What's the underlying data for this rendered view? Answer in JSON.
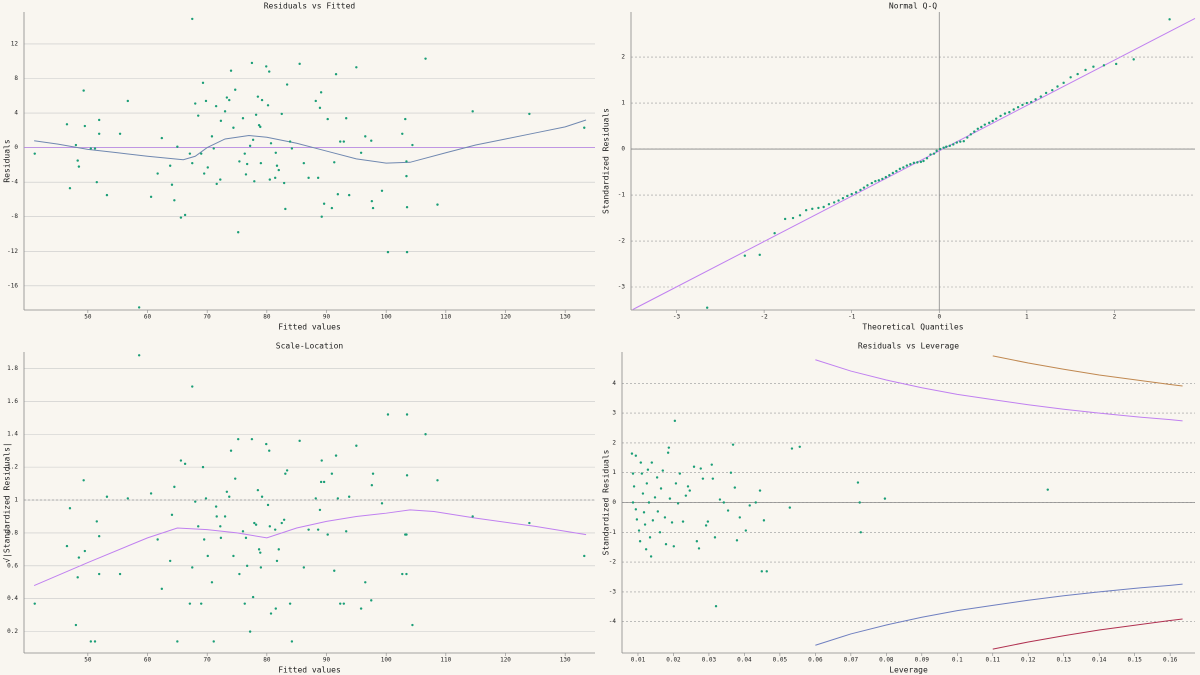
{
  "chart_data": [
    {
      "type": "scatter",
      "title": "Residuals vs Fitted",
      "xlabel": "Fitted values",
      "ylabel": "Residuals",
      "color": "#1b9e77",
      "grid": "solid",
      "xlim": [
        39.3,
        135
      ],
      "ylim": [
        -18.8,
        15.7
      ],
      "xticks": [
        50,
        60,
        70,
        80,
        90,
        100,
        110,
        120,
        130
      ],
      "yticks": [
        -16,
        -12,
        -8,
        -4,
        0,
        4,
        8,
        12
      ],
      "x": [
        41.1,
        46.5,
        47.0,
        48.3,
        48.5,
        48.0,
        49.3,
        49.5,
        50.5,
        51.2,
        51.5,
        51.9,
        51.9,
        53.2,
        55.4,
        56.7,
        58.6,
        60.6,
        61.7,
        62.4,
        63.8,
        64.1,
        64.5,
        65.0,
        65.6,
        66.3,
        67.1,
        67.5,
        67.5,
        68.0,
        68.5,
        69.0,
        69.3,
        69.5,
        69.8,
        70.1,
        70.8,
        71.1,
        71.5,
        71.6,
        72.2,
        72.3,
        73.0,
        73.3,
        73.7,
        74.0,
        74.4,
        74.7,
        75.2,
        75.4,
        76.0,
        76.3,
        76.5,
        76.7,
        77.2,
        77.5,
        77.7,
        77.9,
        78.2,
        78.5,
        78.7,
        78.9,
        79.0,
        79.2,
        79.9,
        80.2,
        80.4,
        80.5,
        80.7,
        81.4,
        81.5,
        81.7,
        82.0,
        82.5,
        82.9,
        83.1,
        83.4,
        83.9,
        84.2,
        85.5,
        86.2,
        87.0,
        88.2,
        88.6,
        88.9,
        89.1,
        89.2,
        89.6,
        90.2,
        90.9,
        91.3,
        91.6,
        91.9,
        92.3,
        92.9,
        93.3,
        93.8,
        95.0,
        95.8,
        96.5,
        97.5,
        97.6,
        97.8,
        99.3,
        100.3,
        102.7,
        103.2,
        103.4,
        103.4,
        103.5,
        103.5,
        104.4,
        106.6,
        108.6,
        114.5,
        124.0,
        133.2
      ],
      "values": [
        -0.7,
        2.7,
        -4.7,
        -1.5,
        -2.2,
        0.3,
        6.6,
        2.5,
        -0.1,
        -0.1,
        -4.0,
        3.2,
        1.6,
        -5.5,
        1.6,
        5.4,
        -18.5,
        -5.7,
        -3.0,
        1.1,
        -2.1,
        -4.3,
        -6.1,
        0.1,
        -8.1,
        -7.8,
        -0.7,
        14.9,
        -1.8,
        5.1,
        3.7,
        -0.7,
        7.5,
        -3.0,
        5.4,
        -2.3,
        1.3,
        -0.1,
        4.8,
        -4.2,
        -3.7,
        3.1,
        4.2,
        5.8,
        5.5,
        8.9,
        2.3,
        6.7,
        -9.8,
        -1.6,
        3.4,
        -0.7,
        -3.1,
        -1.9,
        0.2,
        9.8,
        0.9,
        -3.9,
        3.8,
        5.9,
        2.6,
        2.4,
        -1.8,
        5.5,
        9.4,
        4.9,
        8.8,
        -3.7,
        0.5,
        -3.5,
        -0.6,
        -2.1,
        -2.6,
        3.9,
        -4.1,
        -7.1,
        7.3,
        0.7,
        -0.1,
        9.7,
        -1.8,
        -3.5,
        5.4,
        -3.5,
        4.6,
        6.4,
        -8.0,
        -6.5,
        3.3,
        -7.0,
        -1.7,
        8.5,
        -5.4,
        0.7,
        0.7,
        3.4,
        -5.5,
        9.3,
        -0.6,
        1.3,
        0.8,
        -6.2,
        -7.0,
        -5.0,
        -12.1,
        1.6,
        3.3,
        -1.6,
        -3.3,
        -6.9,
        -12.1,
        0.3,
        10.3,
        -6.6,
        4.2,
        3.9,
        2.3
      ],
      "ref_lines": [
        {
          "axis": "y",
          "value": 0,
          "color": "#b47ee5",
          "dash": false
        }
      ],
      "lines": [
        {
          "color": "#7088b0",
          "x": [
            41,
            45,
            50,
            55,
            60,
            63,
            66,
            68,
            70,
            73,
            77,
            80,
            85,
            90,
            95,
            100,
            104,
            110,
            115,
            120,
            125,
            130,
            133.5
          ],
          "values": [
            0.8,
            0.4,
            -0.2,
            -0.6,
            -1.0,
            -1.2,
            -1.4,
            -1.0,
            0,
            1.0,
            1.4,
            1.2,
            0.5,
            -0.4,
            -1.3,
            -1.8,
            -1.7,
            -0.6,
            0.3,
            1.0,
            1.7,
            2.4,
            3.2
          ]
        }
      ]
    },
    {
      "type": "scatter",
      "title": "Normal Q-Q",
      "xlabel": "Theoretical Quantiles",
      "ylabel": "Standardized Residuals",
      "color": "#1b9e77",
      "grid": "dashed",
      "xlim": [
        -3.52,
        2.92
      ],
      "ylim": [
        -3.5,
        2.98
      ],
      "xticks": [
        -3,
        -2,
        -1,
        0,
        1,
        2
      ],
      "yticks": [
        -3,
        -2,
        -1,
        0,
        1,
        2
      ],
      "x": [
        -2.65,
        -2.22,
        -2.05,
        -1.88,
        -1.76,
        -1.67,
        -1.59,
        -1.52,
        -1.45,
        -1.38,
        -1.32,
        -1.26,
        -1.2,
        -1.15,
        -1.1,
        -1.05,
        -1.0,
        -0.95,
        -0.9,
        -0.86,
        -0.82,
        -0.77,
        -0.73,
        -0.69,
        -0.65,
        -0.61,
        -0.57,
        -0.53,
        -0.49,
        -0.45,
        -0.41,
        -0.37,
        -0.33,
        -0.29,
        -0.25,
        -0.21,
        -0.18,
        -0.14,
        -0.1,
        -0.06,
        -0.03,
        0.01,
        0.05,
        0.08,
        0.12,
        0.16,
        0.2,
        0.24,
        0.28,
        0.32,
        0.36,
        0.4,
        0.44,
        0.48,
        0.52,
        0.57,
        0.61,
        0.65,
        0.7,
        0.75,
        0.8,
        0.85,
        0.9,
        0.95,
        1.0,
        1.05,
        1.1,
        1.16,
        1.22,
        1.29,
        1.35,
        1.42,
        1.5,
        1.58,
        1.67,
        1.76,
        1.88,
        2.02,
        2.22,
        2.63
      ],
      "values": [
        -3.45,
        -2.32,
        -2.3,
        -1.83,
        -1.52,
        -1.5,
        -1.44,
        -1.33,
        -1.3,
        -1.28,
        -1.26,
        -1.2,
        -1.16,
        -1.12,
        -1.07,
        -1.02,
        -0.98,
        -0.94,
        -0.89,
        -0.84,
        -0.79,
        -0.74,
        -0.7,
        -0.68,
        -0.65,
        -0.61,
        -0.57,
        -0.52,
        -0.48,
        -0.43,
        -0.4,
        -0.36,
        -0.33,
        -0.3,
        -0.29,
        -0.28,
        -0.26,
        -0.2,
        -0.12,
        -0.1,
        -0.04,
        0.0,
        0.03,
        0.05,
        0.07,
        0.1,
        0.14,
        0.16,
        0.17,
        0.25,
        0.32,
        0.38,
        0.44,
        0.48,
        0.53,
        0.57,
        0.61,
        0.66,
        0.72,
        0.77,
        0.8,
        0.86,
        0.91,
        0.96,
        1.0,
        1.02,
        1.08,
        1.14,
        1.22,
        1.28,
        1.36,
        1.44,
        1.56,
        1.63,
        1.72,
        1.79,
        1.82,
        1.85,
        1.95,
        2.82
      ],
      "ref_lines": [
        {
          "axis": "y",
          "value": 0,
          "color": "#888888",
          "dash": false
        },
        {
          "axis": "x",
          "value": 0,
          "color": "#888888",
          "dash": false
        }
      ],
      "lines": [
        {
          "color": "#c080f0",
          "x": [
            -3.5,
            2.92
          ],
          "values": [
            -3.49,
            2.84
          ]
        }
      ]
    },
    {
      "type": "scatter",
      "title": "Scale-Location",
      "xlabel": "Fitted values",
      "ylabel": "√|Standardized Residuals|",
      "color": "#1b9e77",
      "grid": "solid",
      "xlim": [
        39.3,
        135
      ],
      "ylim": [
        0.07,
        1.9
      ],
      "xticks": [
        50,
        60,
        70,
        80,
        90,
        100,
        110,
        120,
        130
      ],
      "yticks": [
        0.2,
        0.4,
        0.6,
        0.8,
        1,
        1.2,
        1.4,
        1.6,
        1.8
      ],
      "x": [
        41.1,
        46.5,
        47.0,
        48.3,
        48.5,
        48.0,
        49.3,
        49.5,
        50.5,
        51.2,
        51.5,
        51.9,
        51.9,
        53.2,
        55.4,
        56.7,
        58.6,
        60.6,
        61.7,
        62.4,
        63.8,
        64.1,
        64.5,
        65.0,
        65.6,
        66.3,
        67.1,
        67.5,
        67.5,
        68.0,
        68.5,
        69.0,
        69.3,
        69.5,
        69.8,
        70.1,
        70.8,
        71.1,
        71.5,
        71.6,
        72.2,
        72.3,
        73.0,
        73.3,
        73.7,
        74.0,
        74.4,
        74.7,
        75.2,
        75.4,
        76.0,
        76.3,
        76.5,
        76.7,
        77.2,
        77.5,
        77.7,
        77.9,
        78.2,
        78.5,
        78.7,
        78.9,
        79.0,
        79.2,
        79.9,
        80.2,
        80.4,
        80.5,
        80.7,
        81.4,
        81.5,
        81.7,
        82.0,
        82.5,
        82.9,
        83.1,
        83.4,
        83.9,
        84.2,
        85.5,
        86.2,
        87.0,
        88.2,
        88.6,
        88.9,
        89.1,
        89.2,
        89.6,
        90.2,
        90.9,
        91.3,
        91.6,
        91.9,
        92.3,
        92.9,
        93.3,
        93.8,
        95.0,
        95.8,
        96.5,
        97.5,
        97.6,
        97.8,
        99.3,
        100.3,
        102.7,
        103.2,
        103.4,
        103.4,
        103.5,
        103.5,
        104.4,
        106.6,
        108.6,
        114.5,
        124.0,
        133.2
      ],
      "values": [
        0.37,
        0.72,
        0.95,
        0.53,
        0.65,
        0.24,
        1.12,
        0.69,
        0.14,
        0.14,
        0.87,
        0.78,
        0.55,
        1.02,
        0.55,
        1.01,
        1.88,
        1.04,
        0.76,
        0.46,
        0.63,
        0.91,
        1.08,
        0.14,
        1.24,
        1.22,
        0.37,
        1.69,
        0.59,
        0.99,
        0.84,
        0.37,
        1.2,
        0.76,
        1.01,
        0.66,
        0.5,
        0.14,
        0.96,
        0.9,
        0.84,
        0.77,
        0.9,
        1.05,
        1.02,
        1.3,
        0.66,
        1.13,
        1.37,
        0.55,
        0.81,
        0.37,
        0.77,
        0.6,
        0.2,
        1.37,
        0.41,
        0.86,
        0.85,
        1.06,
        0.7,
        0.68,
        0.59,
        1.02,
        1.34,
        0.97,
        1.3,
        0.84,
        0.31,
        0.82,
        0.34,
        0.63,
        0.7,
        0.86,
        0.88,
        1.16,
        1.18,
        0.37,
        0.14,
        1.36,
        0.59,
        0.82,
        1.01,
        0.82,
        0.94,
        1.11,
        1.24,
        1.11,
        0.79,
        1.16,
        0.57,
        1.27,
        1.01,
        0.37,
        0.37,
        0.81,
        1.02,
        1.33,
        0.34,
        0.5,
        0.39,
        1.09,
        1.16,
        0.98,
        1.52,
        0.55,
        0.79,
        0.55,
        0.79,
        1.15,
        1.52,
        0.24,
        1.4,
        1.12,
        0.9,
        0.86,
        0.66
      ],
      "ref_lines": [
        {
          "axis": "y",
          "value": 1,
          "color": "#999999",
          "dash": true
        }
      ],
      "lines": [
        {
          "color": "#c080f0",
          "x": [
            41,
            50,
            60,
            65,
            70,
            75,
            80,
            85,
            90,
            95,
            100,
            104,
            108,
            115,
            125,
            133.5
          ],
          "values": [
            0.48,
            0.62,
            0.77,
            0.83,
            0.82,
            0.8,
            0.77,
            0.83,
            0.87,
            0.9,
            0.92,
            0.94,
            0.93,
            0.89,
            0.84,
            0.79
          ]
        }
      ]
    },
    {
      "type": "scatter",
      "title": "Residuals vs Leverage",
      "xlabel": "Leverage",
      "ylabel": "Standardized Residuals",
      "color": "#1b9e77",
      "grid": "dashed",
      "xlim": [
        0.0055,
        0.167
      ],
      "ylim": [
        -5.05,
        5.05
      ],
      "xticks": [
        0.01,
        0.02,
        0.03,
        0.04,
        0.05,
        0.06,
        0.07,
        0.08,
        0.09,
        0.1,
        0.11,
        0.12,
        0.13,
        0.14,
        0.15,
        0.16
      ],
      "yticks": [
        -4,
        -3,
        -2,
        -1,
        0,
        1,
        2,
        3,
        4
      ],
      "x": [
        0.0083,
        0.0094,
        0.0086,
        0.0089,
        0.0086,
        0.0094,
        0.0097,
        0.0103,
        0.0106,
        0.0108,
        0.0111,
        0.0114,
        0.0117,
        0.012,
        0.0123,
        0.0125,
        0.0128,
        0.0131,
        0.0134,
        0.0137,
        0.0139,
        0.0142,
        0.0148,
        0.0154,
        0.0156,
        0.0162,
        0.0165,
        0.017,
        0.0176,
        0.0179,
        0.0185,
        0.0187,
        0.019,
        0.0196,
        0.0201,
        0.0204,
        0.0207,
        0.0213,
        0.0218,
        0.0227,
        0.0235,
        0.0241,
        0.0246,
        0.0258,
        0.0266,
        0.0272,
        0.0277,
        0.0283,
        0.0292,
        0.0297,
        0.0308,
        0.0311,
        0.0317,
        0.032,
        0.0331,
        0.0342,
        0.0354,
        0.0362,
        0.0368,
        0.0373,
        0.0379,
        0.0387,
        0.0404,
        0.0415,
        0.0432,
        0.0444,
        0.0449,
        0.0455,
        0.0463,
        0.0528,
        0.0534,
        0.0556,
        0.072,
        0.0725,
        0.0728,
        0.0796,
        0.1255
      ],
      "values": [
        1.64,
        1.57,
        0.97,
        0.54,
        0,
        -0.23,
        -0.57,
        -0.94,
        -1.3,
        1.34,
        0.97,
        0.3,
        -0.33,
        -0.74,
        -1.57,
        0.64,
        1.1,
        0,
        -1.17,
        -1.81,
        1.34,
        -0.6,
        0.17,
        0.84,
        -0.3,
        -1.0,
        0.47,
        1.07,
        -0.5,
        -1.4,
        1.67,
        1.84,
        0.13,
        -0.67,
        -1.47,
        2.74,
        0.64,
        -0.03,
        0.97,
        -0.64,
        0.23,
        0.54,
        0.4,
        1.2,
        -1.3,
        -1.54,
        1.14,
        0.8,
        -0.77,
        -0.64,
        1.27,
        0.8,
        -1.17,
        -3.48,
        0.1,
        0,
        -0.27,
        1.0,
        1.94,
        0.5,
        -1.27,
        -0.5,
        -0.94,
        -0.1,
        0,
        0.4,
        -2.31,
        -0.6,
        -2.31,
        -0.17,
        1.81,
        1.87,
        0.67,
        0,
        -1.0,
        0.13,
        0.43
      ],
      "ref_lines": [
        {
          "axis": "y",
          "value": 0,
          "color": "#888888",
          "dash": false
        }
      ],
      "lines": [
        {
          "color": "#c080f0",
          "x": [
            0.06,
            0.07,
            0.08,
            0.09,
            0.1,
            0.11,
            0.12,
            0.13,
            0.14,
            0.15,
            0.16,
            0.1635
          ],
          "values": [
            4.79,
            4.41,
            4.11,
            3.85,
            3.63,
            3.45,
            3.28,
            3.13,
            3.0,
            2.88,
            2.78,
            2.74
          ]
        },
        {
          "color": "#c08850",
          "x": [
            0.11,
            0.12,
            0.13,
            0.14,
            0.15,
            0.16,
            0.1635
          ],
          "values": [
            4.92,
            4.68,
            4.47,
            4.28,
            4.12,
            3.96,
            3.91
          ]
        },
        {
          "color": "#6f7fc0",
          "x": [
            0.06,
            0.07,
            0.08,
            0.09,
            0.1,
            0.11,
            0.12,
            0.13,
            0.14,
            0.15,
            0.16,
            0.1635
          ],
          "values": [
            -4.79,
            -4.41,
            -4.11,
            -3.85,
            -3.63,
            -3.45,
            -3.28,
            -3.13,
            -3.0,
            -2.88,
            -2.78,
            -2.74
          ]
        },
        {
          "color": "#b03050",
          "x": [
            0.11,
            0.12,
            0.13,
            0.14,
            0.15,
            0.16,
            0.1635
          ],
          "values": [
            -4.92,
            -4.68,
            -4.47,
            -4.28,
            -4.12,
            -3.96,
            -3.91
          ]
        }
      ]
    }
  ]
}
